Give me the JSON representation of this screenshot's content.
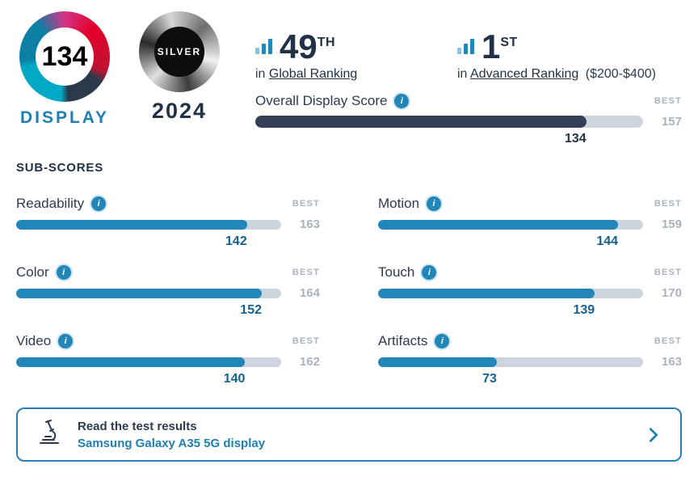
{
  "logo": {
    "score": "134",
    "label": "DISPLAY"
  },
  "medal": {
    "tier": "SILVER",
    "year": "2024"
  },
  "rankings": [
    {
      "rank": "49",
      "ordinal": "TH",
      "prefix": "in",
      "link": "Global Ranking",
      "suffix": ""
    },
    {
      "rank": "1",
      "ordinal": "ST",
      "prefix": "in",
      "link": "Advanced Ranking",
      "suffix": "($200-$400)"
    }
  ],
  "labels": {
    "best": "BEST",
    "subscores_title": "SUB-SCORES",
    "info": "i"
  },
  "overall": {
    "label": "Overall Display Score",
    "value": 134,
    "best": 157
  },
  "subscores": [
    {
      "label": "Readability",
      "value": 142,
      "best": 163
    },
    {
      "label": "Motion",
      "value": 144,
      "best": 159
    },
    {
      "label": "Color",
      "value": 152,
      "best": 164
    },
    {
      "label": "Touch",
      "value": 139,
      "best": 170
    },
    {
      "label": "Video",
      "value": 140,
      "best": 162
    },
    {
      "label": "Artifacts",
      "value": 73,
      "best": 163
    }
  ],
  "footer": {
    "title": "Read the test results",
    "link": "Samsung Galaxy A35 5G display"
  },
  "colors": {
    "accent": "#1e7fb2",
    "bar": "#2287b8",
    "overall_bar": "#333f54",
    "track": "#ccd5de",
    "best_gray": "#a9b3bf",
    "navy": "#223246"
  },
  "chart_data": {
    "type": "bar",
    "title": "Overall Display Score and Sub-Scores",
    "categories": [
      "Overall Display Score",
      "Readability",
      "Motion",
      "Color",
      "Touch",
      "Video",
      "Artifacts"
    ],
    "series": [
      {
        "name": "Score",
        "values": [
          134,
          142,
          144,
          152,
          139,
          140,
          73
        ]
      },
      {
        "name": "Best",
        "values": [
          157,
          163,
          159,
          164,
          170,
          162,
          163
        ]
      }
    ],
    "xlabel": "",
    "ylabel": "",
    "xlim_rule": "bar fill = score / best",
    "grid": false,
    "legend": "none"
  }
}
